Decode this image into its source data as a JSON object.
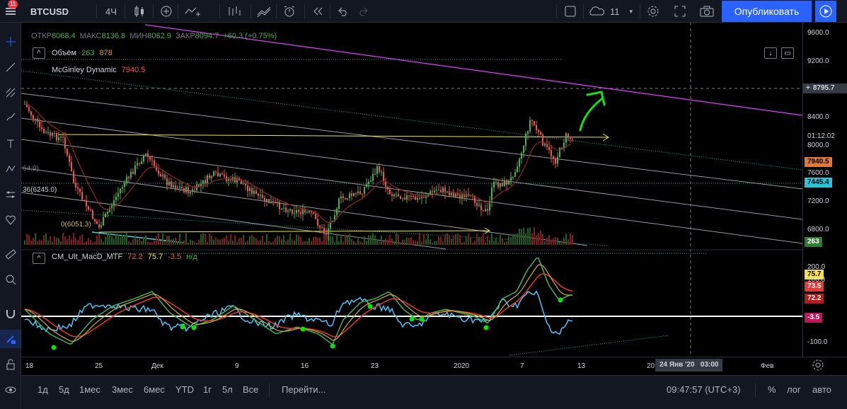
{
  "toolbar": {
    "badge": "11",
    "symbol": "BTCUSD",
    "interval": "4Ч",
    "weather_count": "11",
    "publish_label": "Опубликовать"
  },
  "ohlc": {
    "open_label": "ОТКР",
    "open": "8068.4",
    "high_label": "МАКС",
    "high": "8136.8",
    "low_label": "МИН",
    "low": "8062.9",
    "close_label": "ЗАКР",
    "close": "8094.7",
    "change": "+60.3 (+0.75%)"
  },
  "indicators": {
    "volume_name": "Объём",
    "volume_val1": "263",
    "volume_val2": "878",
    "mcginley_name": "McGinley Dynamic",
    "mcginley_val": "7940.5",
    "macd_name": "CM_Ult_MacD_MTF",
    "macd_v1": "72.2",
    "macd_v2": "75.7",
    "macd_v3": "-3.5",
    "macd_v4": "н/д"
  },
  "fib_labels": {
    "label1": "64.9)",
    "label2": "36(6245.0)",
    "label3": "0(6051.3)"
  },
  "price_axis": {
    "ticks": [
      "9600.0",
      "9200.0",
      "8400.0",
      "8000.0",
      "7600.0",
      "7200.0",
      "6800.0"
    ],
    "crosshair_price": "8795.7",
    "countdown": "01:12:02",
    "mcginley_tag": "7940.5",
    "level_tag": "7445.4",
    "volume_tag": "263",
    "macd_ticks": [
      "200.0",
      "100.0",
      "-100.0"
    ],
    "macd_tag1": "75.7",
    "macd_tag2": "73.5",
    "macd_tag3": "72.2",
    "macd_tag4": "-3.5"
  },
  "time_axis": {
    "ticks": [
      "18",
      "25",
      "Дек",
      "9",
      "16",
      "23",
      "2020",
      "7",
      "13",
      "20",
      "Фев"
    ],
    "crosshair_time": "24 Янв '20   03:00"
  },
  "bottom_bar": {
    "ranges": [
      "1д",
      "5д",
      "1мес",
      "3мес",
      "6мес",
      "YTD",
      "1г",
      "5л",
      "Все"
    ],
    "goto": "Перейти...",
    "clock": "09:47:57 (UTC+3)",
    "percent": "%",
    "log": "лог",
    "auto": "авто"
  },
  "colors": {
    "bull": "#4caf50",
    "bear": "#ef5350",
    "accent": "#2962ff",
    "magenta": "#e040fb",
    "yellow": "#e8e84a",
    "teal_dotted": "#26a69a"
  }
}
